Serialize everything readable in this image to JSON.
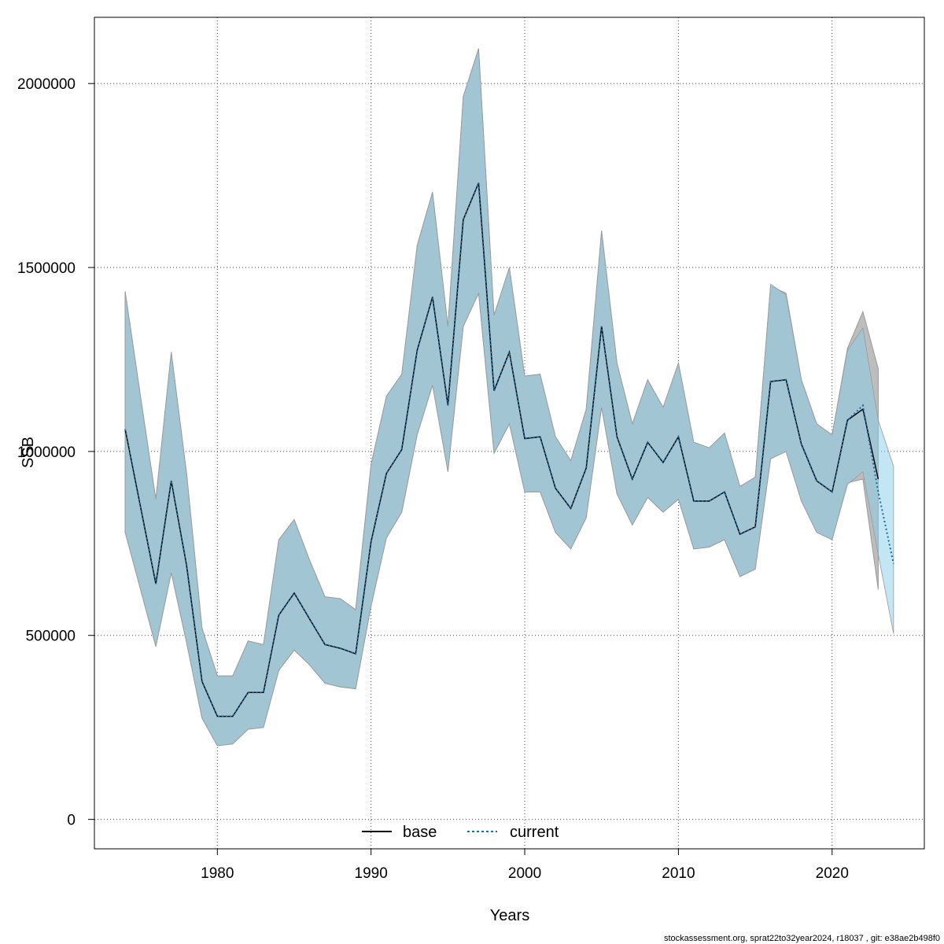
{
  "chart_data": {
    "type": "area",
    "xlabel": "Years",
    "ylabel": "SSB",
    "xlim": [
      1972,
      2026
    ],
    "ylim": [
      -80000,
      2180000
    ],
    "xticks": [
      1980,
      1990,
      2000,
      2010,
      2020
    ],
    "yticks": [
      0,
      500000,
      1000000,
      1500000,
      2000000
    ],
    "xtick_labels": [
      "1980",
      "1990",
      "2000",
      "2010",
      "2020"
    ],
    "ytick_labels": [
      "0",
      "500000",
      "1000000",
      "1500000",
      "2000000"
    ],
    "grid": true,
    "legend_position": "bottom-center",
    "legend": [
      {
        "label": "base",
        "color": "#000000",
        "style": "solid"
      },
      {
        "label": "current",
        "color": "#1a6e9a",
        "style": "dotted"
      }
    ],
    "colors": {
      "base_band": "#bdbdbd",
      "current_band": "#87ceeb",
      "overlap_band": "#a3c4d6",
      "base_line": "#000000",
      "current_line": "#1a6e9a",
      "band_edge": "#999999",
      "grid": "#444444"
    },
    "years": [
      1974,
      1975,
      1976,
      1977,
      1978,
      1979,
      1980,
      1981,
      1982,
      1983,
      1984,
      1985,
      1986,
      1987,
      1988,
      1989,
      1990,
      1991,
      1992,
      1993,
      1994,
      1995,
      1996,
      1997,
      1998,
      1999,
      2000,
      2001,
      2002,
      2003,
      2004,
      2005,
      2006,
      2007,
      2008,
      2009,
      2010,
      2011,
      2012,
      2013,
      2014,
      2015,
      2016,
      2017,
      2018,
      2019,
      2020,
      2021,
      2022,
      2023,
      2024
    ],
    "series": [
      {
        "name": "base",
        "x": [
          1974,
          1975,
          1976,
          1977,
          1978,
          1979,
          1980,
          1981,
          1982,
          1983,
          1984,
          1985,
          1986,
          1987,
          1988,
          1989,
          1990,
          1991,
          1992,
          1993,
          1994,
          1995,
          1996,
          1997,
          1998,
          1999,
          2000,
          2001,
          2002,
          2003,
          2004,
          2005,
          2006,
          2007,
          2008,
          2009,
          2010,
          2011,
          2012,
          2013,
          2014,
          2015,
          2016,
          2017,
          2018,
          2019,
          2020,
          2021,
          2022,
          2023
        ],
        "values": [
          1060000,
          850000,
          640000,
          920000,
          690000,
          375000,
          280000,
          280000,
          345000,
          345000,
          555000,
          615000,
          545000,
          475000,
          465000,
          450000,
          755000,
          940000,
          1005000,
          1275000,
          1420000,
          1125000,
          1630000,
          1730000,
          1165000,
          1270000,
          1035000,
          1040000,
          900000,
          845000,
          955000,
          1340000,
          1040000,
          925000,
          1025000,
          970000,
          1040000,
          865000,
          865000,
          890000,
          775000,
          795000,
          1190000,
          1195000,
          1020000,
          920000,
          890000,
          1085000,
          1115000,
          925000
        ],
        "lower": [
          780000,
          625000,
          470000,
          670000,
          480000,
          275000,
          200000,
          205000,
          245000,
          250000,
          405000,
          460000,
          420000,
          370000,
          360000,
          355000,
          580000,
          765000,
          835000,
          1045000,
          1180000,
          945000,
          1340000,
          1430000,
          995000,
          1075000,
          890000,
          890000,
          780000,
          735000,
          820000,
          1120000,
          885000,
          800000,
          875000,
          835000,
          870000,
          735000,
          740000,
          760000,
          660000,
          680000,
          980000,
          1000000,
          865000,
          780000,
          760000,
          915000,
          925000,
          625000
        ],
        "upper": [
          1435000,
          1150000,
          870000,
          1270000,
          940000,
          520000,
          390000,
          390000,
          485000,
          475000,
          760000,
          815000,
          705000,
          605000,
          600000,
          570000,
          965000,
          1150000,
          1210000,
          1560000,
          1705000,
          1340000,
          1965000,
          2095000,
          1370000,
          1500000,
          1205000,
          1210000,
          1040000,
          975000,
          1115000,
          1600000,
          1240000,
          1075000,
          1195000,
          1120000,
          1240000,
          1025000,
          1010000,
          1050000,
          905000,
          930000,
          1450000,
          1430000,
          1195000,
          1075000,
          1045000,
          1280000,
          1380000,
          1225000
        ]
      },
      {
        "name": "current",
        "x": [
          1974,
          1975,
          1976,
          1977,
          1978,
          1979,
          1980,
          1981,
          1982,
          1983,
          1984,
          1985,
          1986,
          1987,
          1988,
          1989,
          1990,
          1991,
          1992,
          1993,
          1994,
          1995,
          1996,
          1997,
          1998,
          1999,
          2000,
          2001,
          2002,
          2003,
          2004,
          2005,
          2006,
          2007,
          2008,
          2009,
          2010,
          2011,
          2012,
          2013,
          2014,
          2015,
          2016,
          2017,
          2018,
          2019,
          2020,
          2021,
          2022,
          2023,
          2024
        ],
        "values": [
          1060000,
          850000,
          640000,
          920000,
          690000,
          375000,
          280000,
          280000,
          345000,
          345000,
          555000,
          615000,
          545000,
          475000,
          465000,
          450000,
          755000,
          940000,
          1005000,
          1275000,
          1420000,
          1125000,
          1630000,
          1730000,
          1165000,
          1270000,
          1035000,
          1040000,
          900000,
          845000,
          955000,
          1340000,
          1040000,
          925000,
          1025000,
          970000,
          1040000,
          865000,
          865000,
          890000,
          775000,
          795000,
          1190000,
          1195000,
          1020000,
          920000,
          890000,
          1085000,
          1125000,
          890000,
          695000
        ],
        "lower": [
          780000,
          625000,
          470000,
          670000,
          480000,
          275000,
          200000,
          205000,
          245000,
          250000,
          405000,
          460000,
          420000,
          370000,
          360000,
          355000,
          580000,
          765000,
          835000,
          1045000,
          1180000,
          945000,
          1340000,
          1430000,
          995000,
          1075000,
          890000,
          890000,
          780000,
          735000,
          820000,
          1120000,
          885000,
          800000,
          875000,
          835000,
          870000,
          735000,
          740000,
          760000,
          660000,
          680000,
          980000,
          1000000,
          865000,
          780000,
          760000,
          910000,
          945000,
          720000,
          505000
        ],
        "upper": [
          1435000,
          1150000,
          870000,
          1270000,
          940000,
          520000,
          390000,
          390000,
          485000,
          475000,
          760000,
          815000,
          705000,
          605000,
          600000,
          570000,
          965000,
          1150000,
          1210000,
          1560000,
          1705000,
          1340000,
          1965000,
          2095000,
          1370000,
          1500000,
          1205000,
          1210000,
          1040000,
          975000,
          1115000,
          1600000,
          1240000,
          1075000,
          1195000,
          1120000,
          1240000,
          1025000,
          1010000,
          1050000,
          905000,
          930000,
          1455000,
          1425000,
          1195000,
          1075000,
          1045000,
          1275000,
          1335000,
          1085000,
          960000
        ]
      }
    ]
  },
  "footer": "stockassessment.org, sprat22to32year2024, r18037 , git: e38ae2b498f0"
}
